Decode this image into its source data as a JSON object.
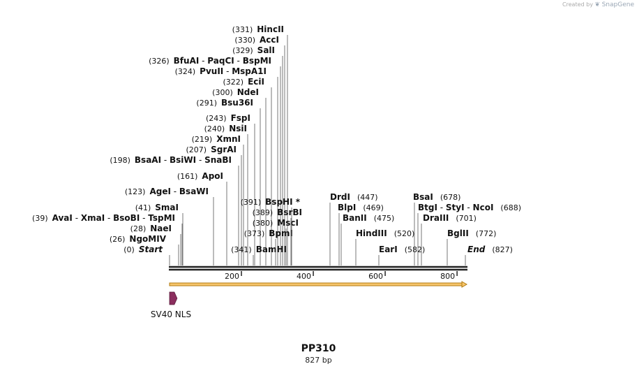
{
  "credit": {
    "prefix": "Created by",
    "logo": "snapgene-logo-icon",
    "brand": "SnapGene"
  },
  "plasmid": {
    "name": "PP310",
    "length_label": "827 bp",
    "length": 827
  },
  "ruler": {
    "ticks": [
      {
        "pos": 200,
        "label": "200"
      },
      {
        "pos": 400,
        "label": "400"
      },
      {
        "pos": 600,
        "label": "600"
      },
      {
        "pos": 800,
        "label": "800"
      }
    ]
  },
  "features": [
    {
      "name": "SV40 NLS",
      "start": 0,
      "end": 21,
      "color": "#8b2e5e",
      "type": "arrow"
    },
    {
      "name": "",
      "start": 0,
      "end": 827,
      "color": "#f7c56b",
      "type": "orf-arrow"
    }
  ],
  "sites_left": [
    {
      "names": [
        "Start"
      ],
      "pos": "0",
      "italic": true
    },
    {
      "names": [
        "NgoMIV"
      ],
      "pos": "26"
    },
    {
      "names": [
        "NaeI"
      ],
      "pos": "28"
    },
    {
      "names": [
        "AvaI",
        "XmaI",
        "BsoBI",
        "TspMI"
      ],
      "pos": "39"
    },
    {
      "names": [
        "SmaI"
      ],
      "pos": "41"
    },
    {
      "names": [
        "AgeI",
        "BsaWI"
      ],
      "pos": "123"
    },
    {
      "names": [
        "ApoI"
      ],
      "pos": "161"
    },
    {
      "names": [
        "BsaAI",
        "BsiWI",
        "SnaBI"
      ],
      "pos": "198"
    },
    {
      "names": [
        "SgrAI"
      ],
      "pos": "207"
    },
    {
      "names": [
        "XmnI"
      ],
      "pos": "219"
    },
    {
      "names": [
        "NsiI"
      ],
      "pos": "240"
    },
    {
      "names": [
        "FspI"
      ],
      "pos": "243"
    },
    {
      "names": [
        "Bsu36I"
      ],
      "pos": "291"
    },
    {
      "names": [
        "NdeI"
      ],
      "pos": "300"
    },
    {
      "names": [
        "EciI"
      ],
      "pos": "322"
    },
    {
      "names": [
        "PvuII",
        "MspA1I"
      ],
      "pos": "324"
    },
    {
      "names": [
        "BfuAI",
        "PaqCI",
        "BspMI"
      ],
      "pos": "326"
    },
    {
      "names": [
        "SalI"
      ],
      "pos": "329"
    },
    {
      "names": [
        "AccI"
      ],
      "pos": "330"
    },
    {
      "names": [
        "HincII"
      ],
      "pos": "331"
    }
  ],
  "sites_mid": [
    {
      "names": [
        "BamHI"
      ],
      "pos": "341"
    },
    {
      "names": [
        "BpmI"
      ],
      "pos": "373"
    },
    {
      "names": [
        "MscI"
      ],
      "pos": "380"
    },
    {
      "names": [
        "BsrBI"
      ],
      "pos": "389"
    },
    {
      "names": [
        "BspHI"
      ],
      "pos": "391",
      "star": "*"
    }
  ],
  "sites_right": [
    {
      "names": [
        "DrdI"
      ],
      "pos": "447"
    },
    {
      "names": [
        "BlpI"
      ],
      "pos": "469"
    },
    {
      "names": [
        "BanII"
      ],
      "pos": "475"
    },
    {
      "names": [
        "HindIII"
      ],
      "pos": "520"
    },
    {
      "names": [
        "EarI"
      ],
      "pos": "582"
    },
    {
      "names": [
        "BsaI"
      ],
      "pos": "678"
    },
    {
      "names": [
        "BtgI",
        "StyI",
        "NcoI"
      ],
      "pos": "688"
    },
    {
      "names": [
        "DraIII"
      ],
      "pos": "701"
    },
    {
      "names": [
        "BglII"
      ],
      "pos": "772"
    },
    {
      "names": [
        "End"
      ],
      "pos": "827",
      "italic": true
    }
  ]
}
